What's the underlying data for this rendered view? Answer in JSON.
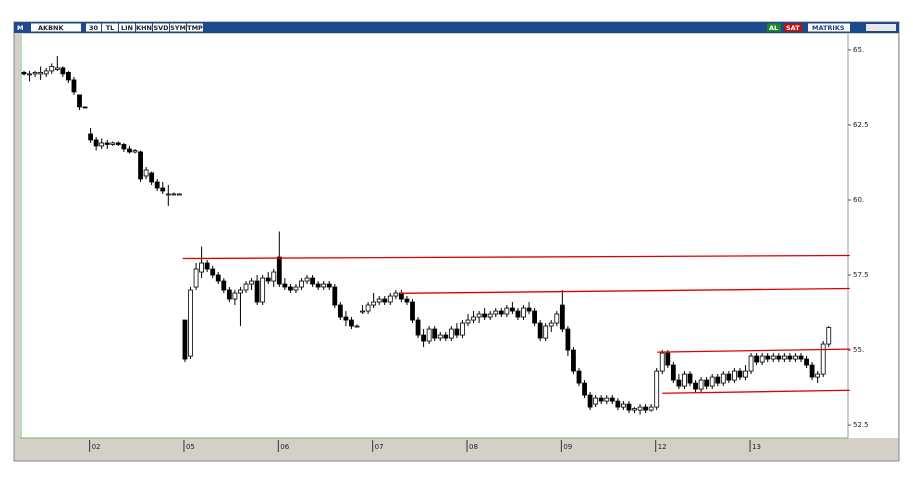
{
  "toolbar": {
    "logo": "M",
    "symbol": "AKBNK",
    "buttons": [
      "30",
      "TL",
      "LIN",
      "KHN",
      "SVD",
      "SYM",
      "TMP"
    ],
    "buy": "AL",
    "sell": "SAT",
    "brand": "MATRIKS"
  },
  "chart_data": {
    "type": "candlestick",
    "categories": [
      null,
      null,
      null,
      null,
      null,
      null,
      null,
      null,
      null,
      null,
      null,
      null,
      "02",
      null,
      null,
      null,
      null,
      null,
      null,
      null,
      null,
      null,
      null,
      null,
      null,
      null,
      null,
      null,
      null,
      "05",
      null,
      null,
      null,
      null,
      null,
      null,
      null,
      null,
      null,
      null,
      null,
      null,
      null,
      null,
      null,
      null,
      "06",
      null,
      null,
      null,
      null,
      null,
      null,
      null,
      null,
      null,
      null,
      null,
      null,
      null,
      null,
      null,
      null,
      "07",
      null,
      null,
      null,
      null,
      null,
      null,
      null,
      null,
      null,
      null,
      null,
      null,
      null,
      null,
      null,
      null,
      "08",
      null,
      null,
      null,
      null,
      null,
      null,
      null,
      null,
      null,
      null,
      null,
      null,
      null,
      null,
      null,
      null,
      "09",
      null,
      null,
      null,
      null,
      null,
      null,
      null,
      null,
      null,
      null,
      null,
      null,
      null,
      null,
      null,
      null,
      "12",
      null,
      null,
      null,
      null,
      null,
      null,
      null,
      null,
      null,
      null,
      null,
      null,
      null,
      null,
      null,
      null,
      "13",
      null,
      null,
      null,
      null,
      null,
      null,
      null,
      null,
      null,
      null,
      null,
      null,
      null,
      null
    ],
    "values": [
      [
        64.25,
        64.3,
        64.15,
        64.2
      ],
      [
        64.2,
        64.3,
        63.95,
        64.2
      ],
      [
        64.2,
        64.3,
        64.1,
        64.25
      ],
      [
        64.2,
        64.45,
        64.0,
        64.25
      ],
      [
        64.2,
        64.4,
        64.1,
        64.3
      ],
      [
        64.3,
        64.55,
        64.2,
        64.45
      ],
      [
        64.35,
        64.8,
        64.3,
        64.4
      ],
      [
        64.4,
        64.45,
        64.1,
        64.2
      ],
      [
        64.25,
        64.3,
        63.9,
        64.0
      ],
      [
        64.0,
        64.1,
        63.5,
        63.6
      ],
      [
        63.5,
        63.5,
        63.0,
        63.1
      ],
      [
        63.1,
        63.1,
        63.05,
        63.08
      ],
      [
        62.2,
        62.4,
        61.9,
        62.0
      ],
      [
        62.0,
        62.1,
        61.65,
        61.8
      ],
      [
        61.8,
        62.05,
        61.7,
        61.9
      ],
      [
        61.9,
        62.0,
        61.7,
        61.85
      ],
      [
        61.85,
        61.95,
        61.8,
        61.9
      ],
      [
        61.9,
        61.95,
        61.8,
        61.85
      ],
      [
        61.85,
        61.9,
        61.6,
        61.7
      ],
      [
        61.7,
        61.8,
        61.55,
        61.6
      ],
      [
        61.6,
        61.7,
        61.55,
        61.65
      ],
      [
        61.6,
        61.65,
        60.6,
        60.7
      ],
      [
        60.8,
        61.1,
        60.7,
        61.0
      ],
      [
        60.9,
        60.95,
        60.5,
        60.6
      ],
      [
        60.6,
        60.7,
        60.3,
        60.4
      ],
      [
        60.4,
        60.6,
        60.2,
        60.3
      ],
      [
        60.2,
        60.5,
        59.8,
        60.2
      ],
      [
        60.2,
        60.25,
        60.15,
        60.2
      ],
      [
        60.2,
        60.22,
        60.18,
        60.2
      ],
      [
        56.0,
        56.0,
        54.6,
        54.7
      ],
      [
        54.8,
        57.1,
        54.7,
        57.0
      ],
      [
        57.1,
        57.9,
        57.0,
        57.7
      ],
      [
        57.6,
        58.45,
        57.4,
        57.9
      ],
      [
        57.9,
        58.0,
        57.6,
        57.7
      ],
      [
        57.7,
        57.8,
        57.4,
        57.5
      ],
      [
        57.5,
        57.6,
        57.2,
        57.3
      ],
      [
        57.3,
        57.4,
        56.9,
        57.0
      ],
      [
        57.0,
        57.1,
        56.6,
        56.7
      ],
      [
        56.7,
        57.0,
        56.5,
        56.9
      ],
      [
        56.9,
        57.1,
        55.8,
        57.0
      ],
      [
        57.0,
        57.3,
        56.9,
        57.2
      ],
      [
        57.2,
        57.4,
        57.0,
        57.3
      ],
      [
        57.3,
        57.5,
        56.5,
        56.6
      ],
      [
        56.6,
        57.5,
        56.5,
        57.4
      ],
      [
        57.4,
        57.6,
        57.2,
        57.3
      ],
      [
        57.3,
        57.7,
        57.1,
        57.6
      ],
      [
        58.1,
        58.95,
        57.1,
        57.2
      ],
      [
        57.2,
        57.4,
        57.0,
        57.1
      ],
      [
        57.1,
        57.2,
        56.9,
        57.0
      ],
      [
        57.0,
        57.2,
        56.9,
        57.1
      ],
      [
        57.1,
        57.4,
        57.0,
        57.3
      ],
      [
        57.3,
        57.5,
        57.2,
        57.4
      ],
      [
        57.4,
        57.5,
        57.1,
        57.2
      ],
      [
        57.2,
        57.3,
        57.0,
        57.1
      ],
      [
        57.1,
        57.3,
        57.0,
        57.2
      ],
      [
        57.2,
        57.3,
        57.0,
        57.1
      ],
      [
        57.1,
        57.2,
        56.4,
        56.5
      ],
      [
        56.5,
        56.6,
        56.0,
        56.1
      ],
      [
        56.1,
        56.3,
        55.8,
        56.0
      ],
      [
        56.0,
        56.1,
        55.7,
        55.8
      ],
      [
        55.8,
        55.85,
        55.75,
        55.8
      ],
      [
        56.3,
        56.5,
        56.2,
        56.3
      ],
      [
        56.3,
        56.6,
        56.2,
        56.5
      ],
      [
        56.5,
        56.9,
        56.4,
        56.6
      ],
      [
        56.6,
        56.8,
        56.5,
        56.7
      ],
      [
        56.7,
        56.8,
        56.5,
        56.6
      ],
      [
        56.6,
        56.9,
        56.5,
        56.8
      ],
      [
        56.8,
        57.0,
        56.7,
        56.9
      ],
      [
        56.9,
        57.0,
        56.6,
        56.7
      ],
      [
        56.7,
        56.8,
        56.5,
        56.6
      ],
      [
        56.6,
        56.7,
        55.9,
        56.0
      ],
      [
        56.0,
        56.1,
        55.4,
        55.5
      ],
      [
        55.5,
        55.7,
        55.1,
        55.3
      ],
      [
        55.3,
        55.8,
        55.2,
        55.7
      ],
      [
        55.7,
        55.8,
        55.3,
        55.4
      ],
      [
        55.4,
        55.6,
        55.3,
        55.5
      ],
      [
        55.5,
        55.6,
        55.3,
        55.4
      ],
      [
        55.4,
        55.8,
        55.3,
        55.7
      ],
      [
        55.7,
        55.9,
        55.4,
        55.5
      ],
      [
        55.5,
        56.0,
        55.4,
        55.9
      ],
      [
        55.9,
        56.2,
        55.8,
        56.0
      ],
      [
        56.0,
        56.3,
        55.9,
        56.1
      ],
      [
        56.1,
        56.3,
        55.9,
        56.2
      ],
      [
        56.2,
        56.4,
        56.0,
        56.1
      ],
      [
        56.1,
        56.3,
        56.0,
        56.2
      ],
      [
        56.2,
        56.4,
        56.1,
        56.3
      ],
      [
        56.3,
        56.4,
        56.1,
        56.2
      ],
      [
        56.2,
        56.5,
        56.1,
        56.4
      ],
      [
        56.4,
        56.6,
        56.2,
        56.3
      ],
      [
        56.3,
        56.4,
        56.0,
        56.1
      ],
      [
        56.1,
        56.5,
        56.0,
        56.4
      ],
      [
        56.4,
        56.6,
        56.2,
        56.3
      ],
      [
        56.3,
        56.4,
        55.8,
        55.9
      ],
      [
        55.9,
        56.0,
        55.3,
        55.4
      ],
      [
        55.4,
        55.9,
        55.3,
        55.8
      ],
      [
        55.8,
        56.0,
        55.6,
        55.9
      ],
      [
        55.9,
        56.3,
        55.8,
        56.2
      ],
      [
        56.5,
        57.0,
        55.6,
        55.7
      ],
      [
        55.7,
        55.8,
        54.8,
        55.0
      ],
      [
        55.0,
        55.1,
        54.2,
        54.3
      ],
      [
        54.3,
        54.4,
        53.8,
        53.9
      ],
      [
        53.9,
        54.0,
        53.4,
        53.5
      ],
      [
        53.5,
        53.6,
        53.0,
        53.1
      ],
      [
        53.2,
        53.5,
        53.1,
        53.4
      ],
      [
        53.4,
        53.5,
        53.2,
        53.3
      ],
      [
        53.3,
        53.5,
        53.2,
        53.4
      ],
      [
        53.4,
        53.5,
        53.2,
        53.3
      ],
      [
        53.3,
        53.4,
        53.0,
        53.1
      ],
      [
        53.1,
        53.3,
        53.0,
        53.2
      ],
      [
        53.2,
        53.3,
        52.9,
        53.0
      ],
      [
        53.0,
        53.1,
        52.9,
        53.05
      ],
      [
        53.0,
        53.2,
        52.85,
        53.1
      ],
      [
        53.1,
        53.2,
        52.9,
        53.0
      ],
      [
        53.0,
        53.2,
        52.95,
        53.1
      ],
      [
        53.1,
        54.4,
        53.0,
        54.3
      ],
      [
        54.3,
        55.0,
        54.2,
        54.9
      ],
      [
        54.9,
        55.0,
        54.4,
        54.5
      ],
      [
        54.5,
        54.6,
        53.9,
        54.0
      ],
      [
        54.0,
        54.2,
        53.7,
        53.8
      ],
      [
        53.8,
        54.3,
        53.7,
        54.2
      ],
      [
        54.2,
        54.3,
        53.8,
        53.9
      ],
      [
        53.9,
        54.0,
        53.6,
        53.7
      ],
      [
        53.7,
        54.1,
        53.6,
        54.0
      ],
      [
        54.0,
        54.1,
        53.7,
        53.8
      ],
      [
        53.8,
        54.2,
        53.7,
        54.1
      ],
      [
        54.1,
        54.2,
        53.8,
        53.9
      ],
      [
        53.9,
        54.3,
        53.8,
        54.2
      ],
      [
        54.2,
        54.3,
        53.9,
        54.0
      ],
      [
        54.0,
        54.4,
        53.9,
        54.3
      ],
      [
        54.3,
        54.4,
        54.0,
        54.1
      ],
      [
        54.1,
        54.5,
        54.0,
        54.3
      ],
      [
        54.3,
        54.9,
        54.2,
        54.8
      ],
      [
        54.8,
        54.9,
        54.5,
        54.6
      ],
      [
        54.6,
        54.9,
        54.5,
        54.8
      ],
      [
        54.8,
        54.9,
        54.6,
        54.7
      ],
      [
        54.7,
        54.9,
        54.6,
        54.8
      ],
      [
        54.8,
        54.9,
        54.6,
        54.7
      ],
      [
        54.7,
        54.9,
        54.6,
        54.8
      ],
      [
        54.8,
        54.9,
        54.6,
        54.7
      ],
      [
        54.7,
        54.9,
        54.6,
        54.8
      ],
      [
        54.8,
        54.9,
        54.6,
        54.7
      ],
      [
        54.7,
        54.8,
        54.4,
        54.5
      ],
      [
        54.5,
        54.6,
        54.0,
        54.1
      ],
      [
        54.1,
        54.3,
        53.9,
        54.2
      ],
      [
        54.2,
        55.3,
        54.1,
        55.2
      ],
      [
        55.2,
        55.8,
        55.1,
        55.75
      ]
    ],
    "up_color": "#ffffff",
    "down_color": "#000000",
    "ylim": [
      52.07,
      65.53
    ],
    "yticks": [
      {
        "value": 52.5,
        "label": "52.5"
      },
      {
        "value": 55,
        "label": "55."
      },
      {
        "value": 57.5,
        "label": "57.5"
      },
      {
        "value": 60,
        "label": "60."
      },
      {
        "value": 62.5,
        "label": "62.5"
      },
      {
        "value": 65,
        "label": "65."
      }
    ],
    "trendlines": [
      {
        "x": [
          28.6,
          148.8
        ],
        "y": [
          58.05,
          58.15
        ],
        "color": "#e00000"
      },
      {
        "x": [
          67.7,
          148.8
        ],
        "y": [
          56.89,
          57.05
        ],
        "color": "#e00000"
      },
      {
        "x": [
          114.1,
          148.8
        ],
        "y": [
          54.93,
          55.03
        ],
        "color": "#e00000"
      },
      {
        "x": [
          115,
          148.8
        ],
        "y": [
          53.56,
          53.66
        ],
        "color": "#e00000"
      }
    ]
  }
}
